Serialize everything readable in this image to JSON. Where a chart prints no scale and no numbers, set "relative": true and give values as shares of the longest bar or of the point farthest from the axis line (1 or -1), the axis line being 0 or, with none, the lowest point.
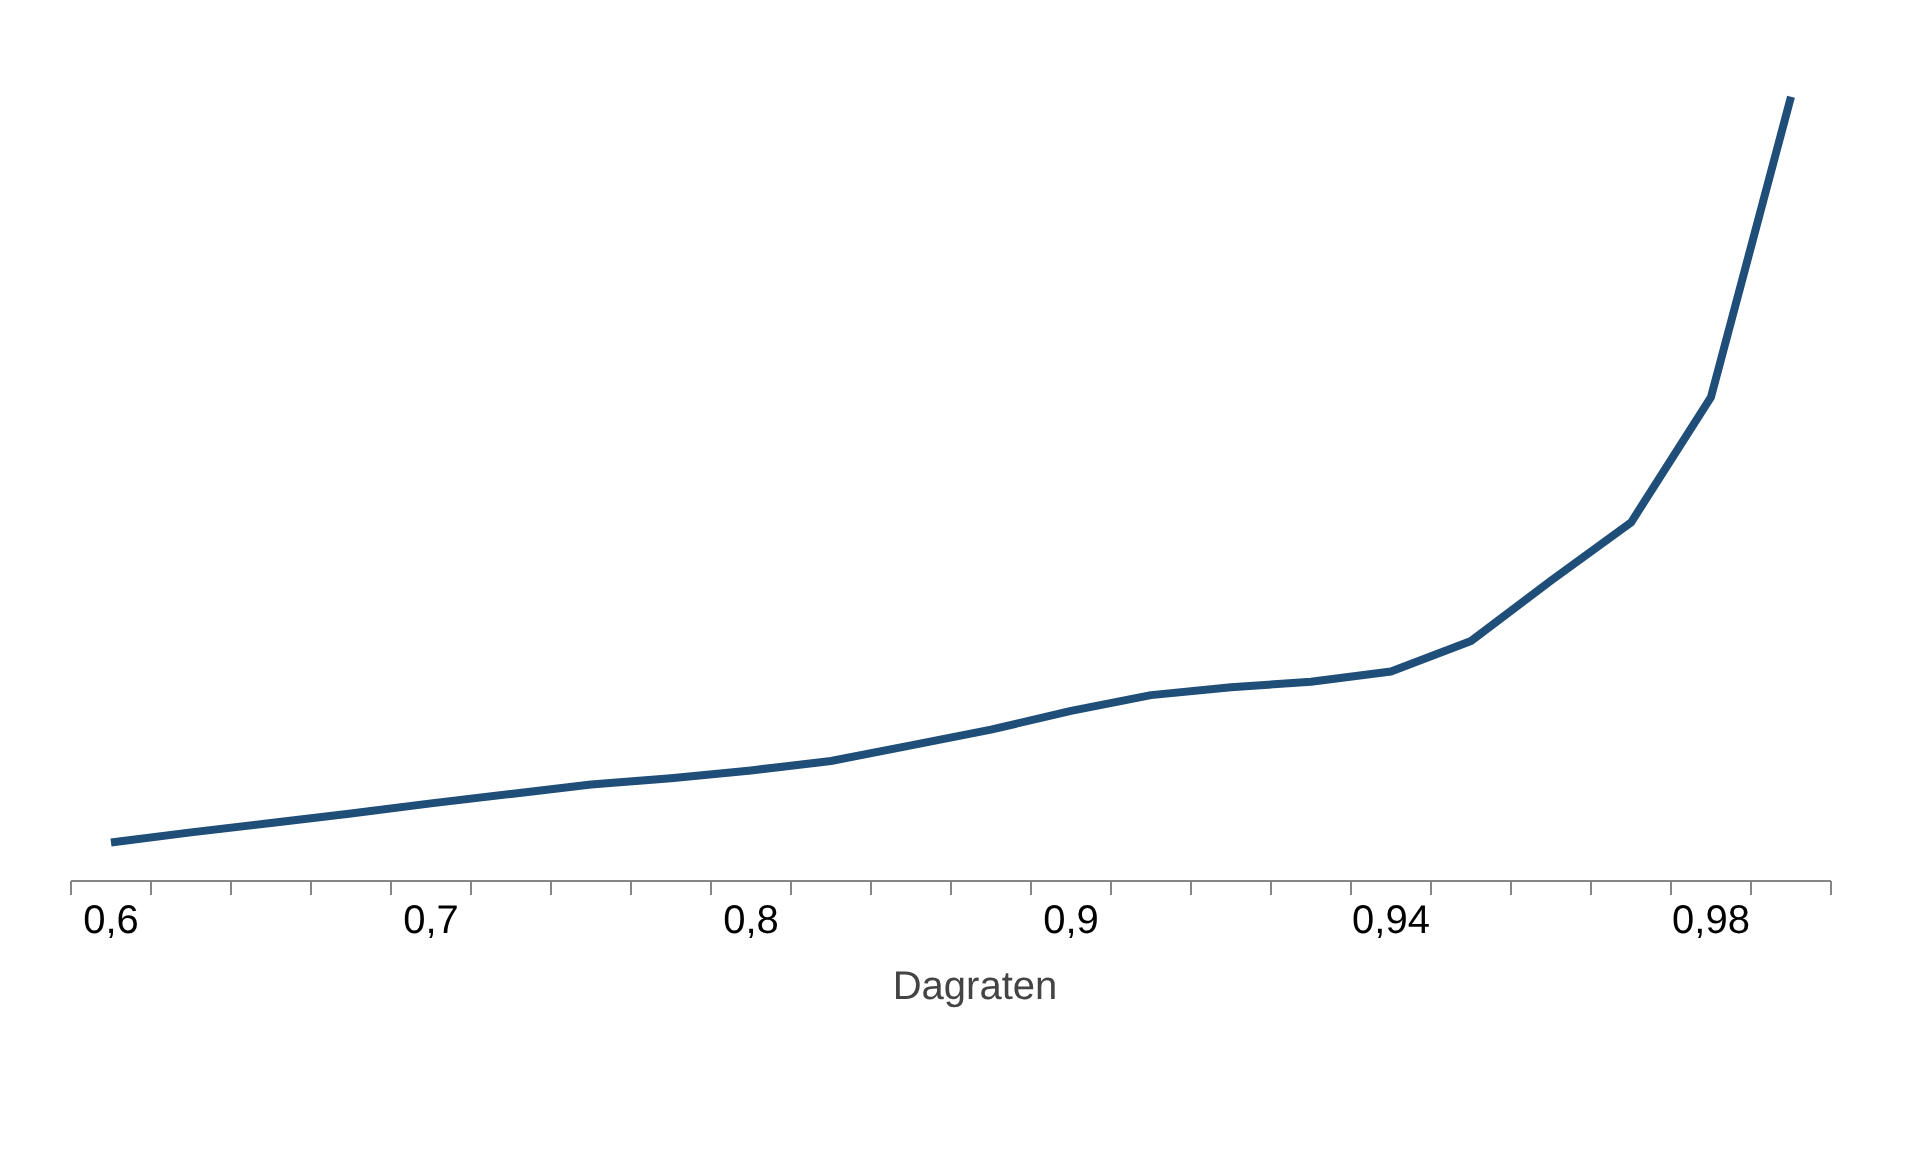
{
  "chart_data": {
    "type": "line",
    "relative": true,
    "categories": [
      "0,6",
      null,
      null,
      null,
      "0,7",
      null,
      null,
      null,
      "0,8",
      null,
      null,
      null,
      "0,9",
      null,
      null,
      null,
      "0,94",
      null,
      null,
      null,
      "0,98",
      null
    ],
    "series": [
      {
        "name": "Dagraten",
        "color": "#1f4e79",
        "values": [
          0.049,
          0.062,
          0.074,
          0.086,
          0.099,
          0.111,
          0.123,
          0.131,
          0.141,
          0.153,
          0.173,
          0.193,
          0.217,
          0.237,
          0.247,
          0.254,
          0.267,
          0.306,
          0.383,
          0.457,
          0.617,
          1
        ]
      }
    ],
    "legend": "bottom",
    "grid": false,
    "marker": "none",
    "line_style": "solid"
  }
}
